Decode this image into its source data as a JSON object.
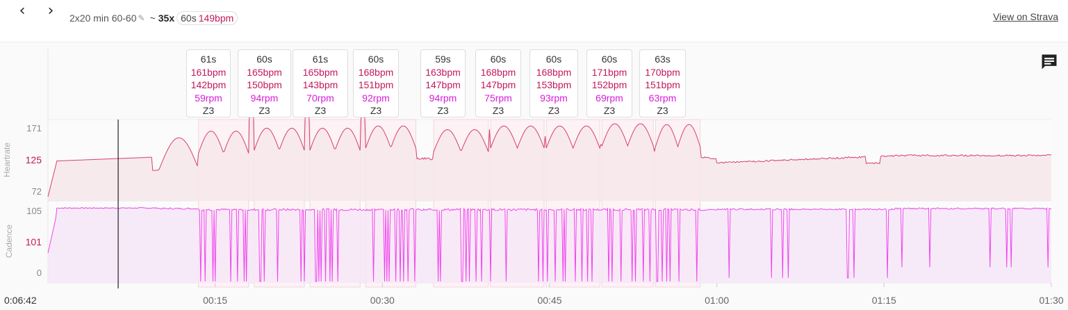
{
  "header": {
    "prev_icon": "chevron-left-icon",
    "next_icon": "chevron-right-icon",
    "prev_glyph": "‹",
    "next_glyph": "›",
    "workout_name": "2x20 min 60-60",
    "edit_icon": "pencil-icon",
    "tilde": "~",
    "interval_count": "35x",
    "interval_duration": "60s",
    "interval_hr": "149bpm",
    "view_link": "View on Strava"
  },
  "comment_icon": "comment-icon",
  "chart_data": {
    "type": "line",
    "start_time": "0:06:42",
    "x_unit": "minutes",
    "xlim": [
      0,
      90
    ],
    "x_ticks": [
      {
        "value": 15,
        "label": "00:15"
      },
      {
        "value": 30,
        "label": "00:30"
      },
      {
        "value": 45,
        "label": "00:45"
      },
      {
        "value": 60,
        "label": "01:00"
      },
      {
        "value": 75,
        "label": "01:15"
      },
      {
        "value": 90,
        "label": "01:30"
      }
    ],
    "panels": [
      {
        "name": "Heartrate",
        "y_ticks": [
          "171",
          "125",
          "72"
        ],
        "ylim": [
          72,
          171
        ],
        "color": "#d6406c",
        "fill": "#f6e6ea"
      },
      {
        "name": "Cadence",
        "y_ticks": [
          "105",
          "101",
          "0"
        ],
        "ylim": [
          0,
          105
        ],
        "color": "#ee44ee",
        "fill": "#f6e6f7"
      }
    ],
    "cursor_x": 6.3,
    "intervals": [
      {
        "duration": "61s",
        "hr_max": "161bpm",
        "hr_avg": "142bpm",
        "cadence": "59rpm",
        "zone": "Z3",
        "x_start": 13.5,
        "x_end": 18.0
      },
      {
        "duration": "60s",
        "hr_max": "165bpm",
        "hr_avg": "150bpm",
        "cadence": "94rpm",
        "zone": "Z3",
        "x_start": 18.5,
        "x_end": 23.0
      },
      {
        "duration": "61s",
        "hr_max": "165bpm",
        "hr_avg": "143bpm",
        "cadence": "70rpm",
        "zone": "Z3",
        "x_start": 23.5,
        "x_end": 28.0
      },
      {
        "duration": "60s",
        "hr_max": "168bpm",
        "hr_avg": "151bpm",
        "cadence": "92rpm",
        "zone": "Z3",
        "x_start": 28.5,
        "x_end": 33.0
      },
      {
        "duration": "59s",
        "hr_max": "163bpm",
        "hr_avg": "147bpm",
        "cadence": "94rpm",
        "zone": "Z3",
        "x_start": 34.6,
        "x_end": 39.5
      },
      {
        "duration": "60s",
        "hr_max": "168bpm",
        "hr_avg": "147bpm",
        "cadence": "75rpm",
        "zone": "Z3",
        "x_start": 39.7,
        "x_end": 44.5
      },
      {
        "duration": "60s",
        "hr_max": "168bpm",
        "hr_avg": "153bpm",
        "cadence": "93rpm",
        "zone": "Z3",
        "x_start": 44.7,
        "x_end": 49.5
      },
      {
        "duration": "60s",
        "hr_max": "171bpm",
        "hr_avg": "152bpm",
        "cadence": "69rpm",
        "zone": "Z3",
        "x_start": 49.7,
        "x_end": 54.3
      },
      {
        "duration": "63s",
        "hr_max": "170bpm",
        "hr_avg": "151bpm",
        "cadence": "63rpm",
        "zone": "Z3",
        "x_start": 54.5,
        "x_end": 58.5
      }
    ]
  }
}
